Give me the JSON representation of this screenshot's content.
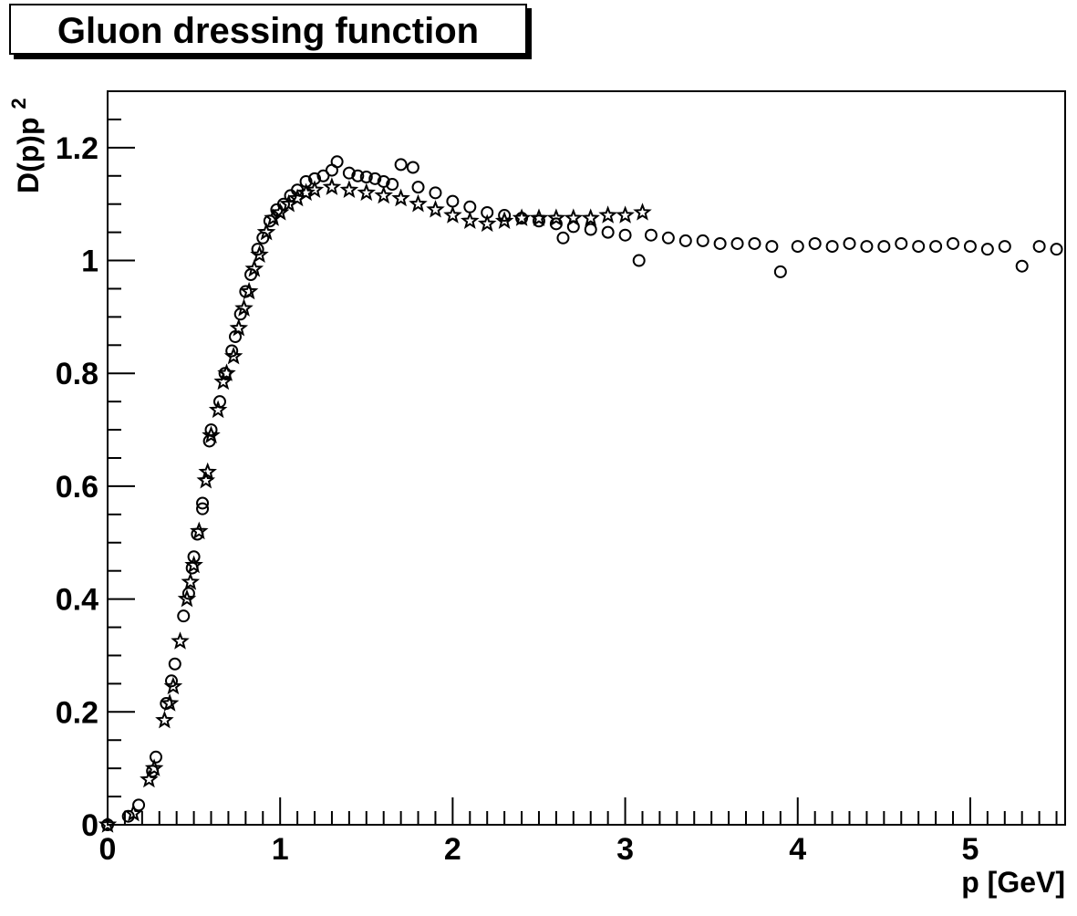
{
  "chart_data": {
    "type": "scatter",
    "title": "Gluon dressing function",
    "xlabel": "p [GeV]",
    "ylabel_main": "D(p)p",
    "ylabel_sup": "2",
    "xlim": [
      0,
      5.55
    ],
    "ylim": [
      0,
      1.3
    ],
    "x_ticks": [
      0,
      1,
      2,
      3,
      4,
      5
    ],
    "x_tick_labels": [
      "0",
      "1",
      "2",
      "3",
      "4",
      "5"
    ],
    "y_ticks": [
      0,
      0.2,
      0.4,
      0.6,
      0.8,
      1.0,
      1.2
    ],
    "y_tick_labels": [
      "0",
      "0.2",
      "0.4",
      "0.6",
      "0.8",
      "1",
      "1.2"
    ],
    "grid": false,
    "legend": "none",
    "marker_color": "#000000",
    "series": [
      {
        "marker": "open-circle",
        "points": [
          [
            0.0,
            0.0
          ],
          [
            0.12,
            0.015
          ],
          [
            0.18,
            0.035
          ],
          [
            0.26,
            0.095
          ],
          [
            0.28,
            0.12
          ],
          [
            0.34,
            0.215
          ],
          [
            0.37,
            0.255
          ],
          [
            0.39,
            0.285
          ],
          [
            0.44,
            0.37
          ],
          [
            0.47,
            0.41
          ],
          [
            0.49,
            0.455
          ],
          [
            0.5,
            0.475
          ],
          [
            0.52,
            0.515
          ],
          [
            0.55,
            0.56
          ],
          [
            0.55,
            0.57
          ],
          [
            0.59,
            0.68
          ],
          [
            0.6,
            0.7
          ],
          [
            0.65,
            0.75
          ],
          [
            0.68,
            0.8
          ],
          [
            0.72,
            0.84
          ],
          [
            0.74,
            0.865
          ],
          [
            0.77,
            0.905
          ],
          [
            0.8,
            0.945
          ],
          [
            0.83,
            0.975
          ],
          [
            0.87,
            1.02
          ],
          [
            0.9,
            1.04
          ],
          [
            0.94,
            1.07
          ],
          [
            0.98,
            1.09
          ],
          [
            1.02,
            1.1
          ],
          [
            1.06,
            1.115
          ],
          [
            1.1,
            1.125
          ],
          [
            1.15,
            1.14
          ],
          [
            1.2,
            1.145
          ],
          [
            1.25,
            1.15
          ],
          [
            1.3,
            1.16
          ],
          [
            1.33,
            1.175
          ],
          [
            1.4,
            1.155
          ],
          [
            1.45,
            1.15
          ],
          [
            1.5,
            1.148
          ],
          [
            1.55,
            1.145
          ],
          [
            1.6,
            1.14
          ],
          [
            1.65,
            1.135
          ],
          [
            1.7,
            1.17
          ],
          [
            1.77,
            1.165
          ],
          [
            1.8,
            1.13
          ],
          [
            1.9,
            1.12
          ],
          [
            2.0,
            1.105
          ],
          [
            2.1,
            1.095
          ],
          [
            2.2,
            1.085
          ],
          [
            2.3,
            1.08
          ],
          [
            2.4,
            1.075
          ],
          [
            2.5,
            1.07
          ],
          [
            2.6,
            1.065
          ],
          [
            2.64,
            1.04
          ],
          [
            2.7,
            1.06
          ],
          [
            2.8,
            1.055
          ],
          [
            2.9,
            1.05
          ],
          [
            3.0,
            1.045
          ],
          [
            3.08,
            1.0
          ],
          [
            3.15,
            1.045
          ],
          [
            3.25,
            1.04
          ],
          [
            3.35,
            1.035
          ],
          [
            3.45,
            1.035
          ],
          [
            3.55,
            1.03
          ],
          [
            3.65,
            1.03
          ],
          [
            3.75,
            1.03
          ],
          [
            3.85,
            1.025
          ],
          [
            3.9,
            0.98
          ],
          [
            4.0,
            1.025
          ],
          [
            4.1,
            1.03
          ],
          [
            4.2,
            1.025
          ],
          [
            4.3,
            1.03
          ],
          [
            4.4,
            1.025
          ],
          [
            4.5,
            1.025
          ],
          [
            4.6,
            1.03
          ],
          [
            4.7,
            1.025
          ],
          [
            4.8,
            1.025
          ],
          [
            4.9,
            1.03
          ],
          [
            5.0,
            1.025
          ],
          [
            5.1,
            1.02
          ],
          [
            5.2,
            1.025
          ],
          [
            5.3,
            0.99
          ],
          [
            5.4,
            1.025
          ],
          [
            5.5,
            1.02
          ]
        ]
      },
      {
        "marker": "open-star",
        "points": [
          [
            0.0,
            0.0
          ],
          [
            0.15,
            0.02
          ],
          [
            0.24,
            0.08
          ],
          [
            0.27,
            0.1
          ],
          [
            0.33,
            0.185
          ],
          [
            0.36,
            0.215
          ],
          [
            0.38,
            0.245
          ],
          [
            0.42,
            0.325
          ],
          [
            0.46,
            0.4
          ],
          [
            0.48,
            0.43
          ],
          [
            0.5,
            0.46
          ],
          [
            0.53,
            0.52
          ],
          [
            0.57,
            0.61
          ],
          [
            0.58,
            0.625
          ],
          [
            0.6,
            0.69
          ],
          [
            0.64,
            0.735
          ],
          [
            0.67,
            0.785
          ],
          [
            0.69,
            0.8
          ],
          [
            0.73,
            0.83
          ],
          [
            0.76,
            0.88
          ],
          [
            0.79,
            0.915
          ],
          [
            0.82,
            0.945
          ],
          [
            0.85,
            0.985
          ],
          [
            0.88,
            1.01
          ],
          [
            0.92,
            1.05
          ],
          [
            0.96,
            1.075
          ],
          [
            1.0,
            1.085
          ],
          [
            1.05,
            1.1
          ],
          [
            1.1,
            1.11
          ],
          [
            1.15,
            1.12
          ],
          [
            1.2,
            1.125
          ],
          [
            1.3,
            1.13
          ],
          [
            1.4,
            1.125
          ],
          [
            1.5,
            1.12
          ],
          [
            1.6,
            1.115
          ],
          [
            1.7,
            1.11
          ],
          [
            1.8,
            1.1
          ],
          [
            1.9,
            1.09
          ],
          [
            2.0,
            1.08
          ],
          [
            2.1,
            1.07
          ],
          [
            2.2,
            1.065
          ],
          [
            2.3,
            1.07
          ],
          [
            2.4,
            1.075
          ],
          [
            2.5,
            1.075
          ],
          [
            2.6,
            1.075
          ],
          [
            2.7,
            1.075
          ],
          [
            2.8,
            1.075
          ],
          [
            2.9,
            1.08
          ],
          [
            3.0,
            1.08
          ],
          [
            3.1,
            1.085
          ]
        ]
      }
    ]
  }
}
